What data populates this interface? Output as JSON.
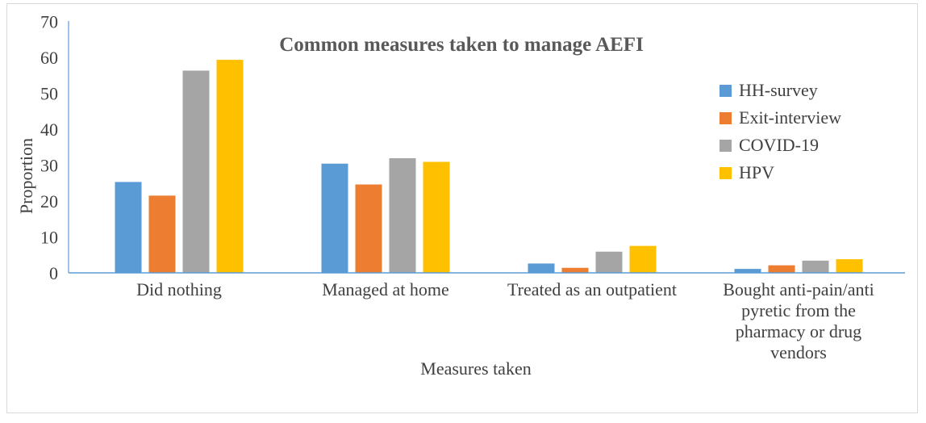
{
  "chart_data": {
    "type": "bar",
    "title": "Common measures taken to manage AEFI",
    "xlabel": "Measures taken",
    "ylabel": "Proportion",
    "ylim": [
      0,
      70
    ],
    "yticks": [
      0,
      10,
      20,
      30,
      40,
      50,
      60,
      70
    ],
    "grid": false,
    "legend_position": "right",
    "categories": [
      [
        "Did nothing"
      ],
      [
        "Managed at home"
      ],
      [
        "Treated as an outpatient"
      ],
      [
        "Bought anti-pain/anti",
        "pyretic from the",
        "pharmacy or drug",
        "vendors"
      ]
    ],
    "series": [
      {
        "name": "HH-survey",
        "color": "#5b9bd5",
        "values": [
          25.3,
          30.4,
          2.6,
          1.1
        ]
      },
      {
        "name": "Exit-interview",
        "color": "#ed7d31",
        "values": [
          21.5,
          24.6,
          1.4,
          2.1
        ]
      },
      {
        "name": "COVID-19",
        "color": "#a5a5a5",
        "values": [
          56.3,
          31.9,
          5.9,
          3.4
        ]
      },
      {
        "name": "HPV",
        "color": "#ffc000",
        "values": [
          59.3,
          30.9,
          7.5,
          3.8
        ]
      }
    ]
  }
}
